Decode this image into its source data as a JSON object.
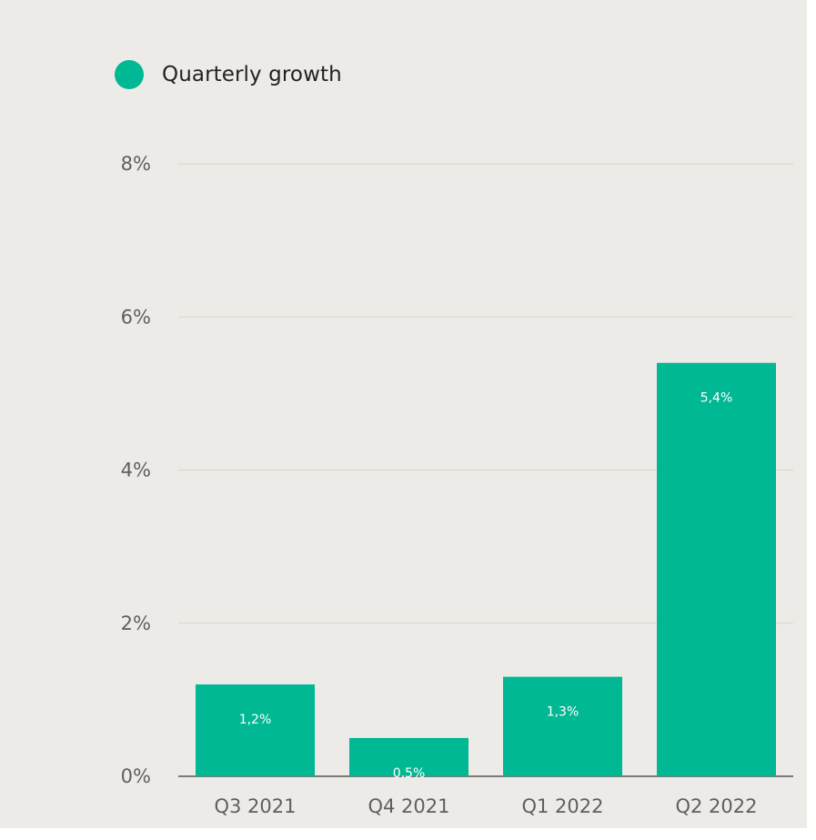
{
  "legend": {
    "label": "Quarterly growth"
  },
  "chart_data": {
    "type": "bar",
    "categories": [
      "Q3 2021",
      "Q4 2021",
      "Q1 2022",
      "Q2 2022"
    ],
    "series": [
      {
        "name": "Quarterly growth",
        "values": [
          1.2,
          0.5,
          1.3,
          5.4
        ]
      }
    ],
    "data_labels": [
      "1,2%",
      "0,5%",
      "1,3%",
      "5,4%"
    ],
    "y_ticks": [
      0,
      2,
      4,
      6,
      8
    ],
    "y_tick_labels": [
      "0%",
      "2%",
      "4%",
      "6%",
      "8%"
    ],
    "ylim": [
      0,
      8
    ],
    "grid": true,
    "legend_position": "top-left",
    "colors": {
      "bar": "#00b894",
      "background": "#edebe7",
      "grid": "#d9d6d1"
    }
  }
}
